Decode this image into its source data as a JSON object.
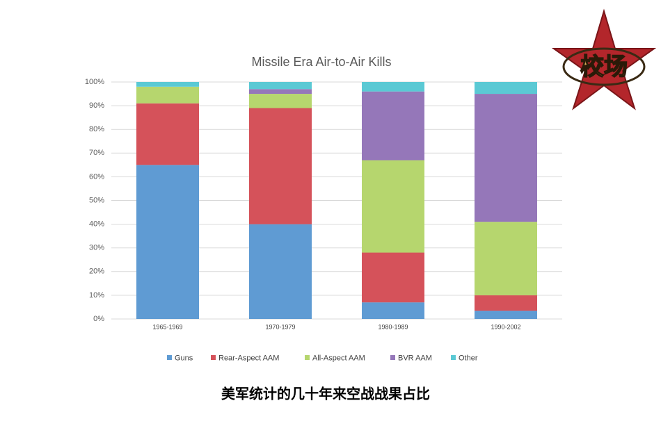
{
  "chart_data": {
    "type": "stacked_bar",
    "title": "Missile Era Air-to-Air Kills",
    "categories": [
      "1965-1969",
      "1970-1979",
      "1980-1989",
      "1990-2002"
    ],
    "series": [
      {
        "name": "Guns",
        "color": "#5f9bd3",
        "values": [
          65,
          40,
          7,
          3.5
        ]
      },
      {
        "name": "Rear-Aspect AAM",
        "color": "#d5525a",
        "values": [
          26,
          49,
          21,
          6.5
        ]
      },
      {
        "name": "All-Aspect AAM",
        "color": "#b6d66e",
        "values": [
          7,
          6,
          39,
          31
        ]
      },
      {
        "name": "BVR AAM",
        "color": "#9577b9",
        "values": [
          0,
          2,
          29,
          54
        ]
      },
      {
        "name": "Other",
        "color": "#5bc9d4",
        "values": [
          2,
          3,
          4,
          5
        ]
      }
    ],
    "ylim": [
      0,
      100
    ],
    "yticks": [
      {
        "value": 0,
        "label": "0%"
      },
      {
        "value": 10,
        "label": "10%"
      },
      {
        "value": 20,
        "label": "20%"
      },
      {
        "value": 30,
        "label": "30%"
      },
      {
        "value": 40,
        "label": "40%"
      },
      {
        "value": 50,
        "label": "50%"
      },
      {
        "value": 60,
        "label": "60%"
      },
      {
        "value": 70,
        "label": "70%"
      },
      {
        "value": 80,
        "label": "80%"
      },
      {
        "value": 90,
        "label": "90%"
      },
      {
        "value": 100,
        "label": "100%"
      }
    ],
    "grid": true,
    "legend": "bottom"
  },
  "caption": "美军统计的几十年来空战战果占比",
  "logo": {
    "text": "校场"
  }
}
